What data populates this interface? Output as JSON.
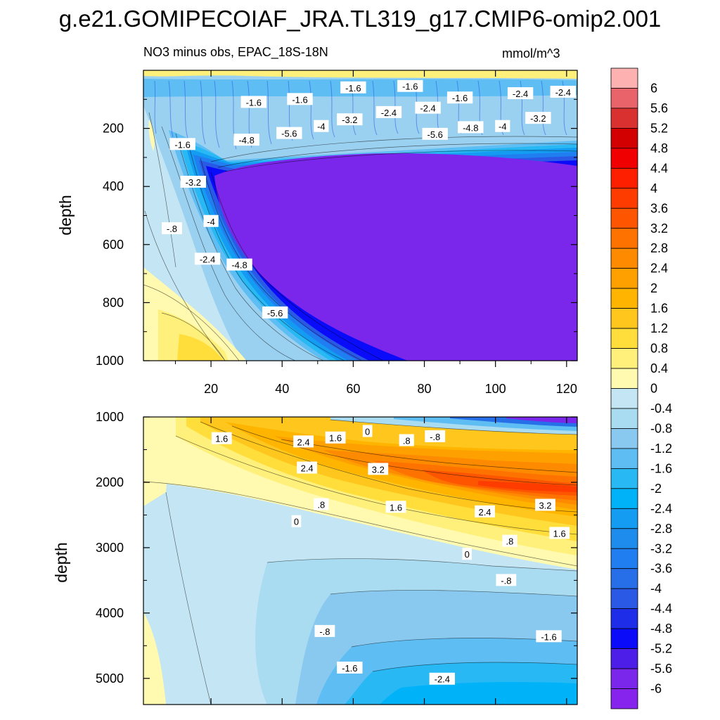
{
  "title": "g.e21.GOMIPECOIAF_JRA.TL319_g17.CMIP6-omip2.001",
  "subtitle": "NO3 minus obs, EPAC_18S-18N",
  "units": "mmol/m^3",
  "chart_data": [
    {
      "type": "contour",
      "name": "upper panel (0-1000 m)",
      "ylabel": "depth",
      "xlabel": "",
      "xlim": [
        1,
        123
      ],
      "ylim": [
        1000,
        0
      ],
      "xticks": [
        20,
        40,
        60,
        80,
        100,
        120
      ],
      "xtick_labels": [
        "20",
        "40",
        "60",
        "80",
        "100",
        "120"
      ],
      "yticks": [
        200,
        400,
        600,
        800,
        1000
      ],
      "ytick_labels": [
        "200",
        "400",
        "600",
        "800",
        "1000"
      ],
      "contour_labels": [
        {
          "text": "-1.6",
          "x": 60,
          "y": 60
        },
        {
          "text": "-1.6",
          "x": 76,
          "y": 55
        },
        {
          "text": "-2.4",
          "x": 107,
          "y": 80
        },
        {
          "text": "-2.4",
          "x": 119,
          "y": 75
        },
        {
          "text": "-1.6",
          "x": 90,
          "y": 95
        },
        {
          "text": "-1.6",
          "x": 32,
          "y": 110
        },
        {
          "text": "-1.6",
          "x": 45,
          "y": 100
        },
        {
          "text": "-2.4",
          "x": 81,
          "y": 130
        },
        {
          "text": "-2.4",
          "x": 70,
          "y": 145
        },
        {
          "text": "-3.2",
          "x": 59,
          "y": 170
        },
        {
          "text": "-3.2",
          "x": 112,
          "y": 165
        },
        {
          "text": "-4",
          "x": 51,
          "y": 193
        },
        {
          "text": "-4.8",
          "x": 93,
          "y": 197
        },
        {
          "text": "-4",
          "x": 102,
          "y": 193
        },
        {
          "text": "-5.6",
          "x": 42,
          "y": 217
        },
        {
          "text": "-5.6",
          "x": 83,
          "y": 220
        },
        {
          "text": "-4.8",
          "x": 30,
          "y": 240
        },
        {
          "text": "-1.6",
          "x": 12,
          "y": 255
        },
        {
          "text": "-3.2",
          "x": 15,
          "y": 385
        },
        {
          "text": "-4",
          "x": 20,
          "y": 520
        },
        {
          "text": "-.8",
          "x": 9,
          "y": 545
        },
        {
          "text": "-2.4",
          "x": 19,
          "y": 650
        },
        {
          "text": "-4.8",
          "x": 28,
          "y": 670
        },
        {
          "text": "-5.6",
          "x": 38,
          "y": 835
        }
      ]
    },
    {
      "type": "contour",
      "name": "lower panel (1000-5400 m)",
      "ylabel": "depth",
      "xlabel": "",
      "xlim": [
        1,
        123
      ],
      "ylim": [
        5400,
        1000
      ],
      "yticks": [
        1000,
        2000,
        3000,
        4000,
        5000
      ],
      "ytick_labels": [
        "1000",
        "2000",
        "3000",
        "4000",
        "5000"
      ],
      "contour_labels": [
        {
          "text": "1.6",
          "x": 23,
          "y": 1330
        },
        {
          "text": "2.4",
          "x": 46,
          "y": 1380
        },
        {
          "text": "1.6",
          "x": 55,
          "y": 1320
        },
        {
          "text": "0",
          "x": 64,
          "y": 1220
        },
        {
          "text": ".8",
          "x": 75,
          "y": 1360
        },
        {
          "text": "-.8",
          "x": 83,
          "y": 1300
        },
        {
          "text": "2.4",
          "x": 47,
          "y": 1780
        },
        {
          "text": "3.2",
          "x": 67,
          "y": 1800
        },
        {
          "text": ".8",
          "x": 51,
          "y": 2340
        },
        {
          "text": "1.6",
          "x": 72,
          "y": 2380
        },
        {
          "text": "2.4",
          "x": 97,
          "y": 2450
        },
        {
          "text": "3.2",
          "x": 114,
          "y": 2350
        },
        {
          "text": "0",
          "x": 44,
          "y": 2600
        },
        {
          "text": ".8",
          "x": 104,
          "y": 2900
        },
        {
          "text": "1.6",
          "x": 118,
          "y": 2780
        },
        {
          "text": "0",
          "x": 92,
          "y": 3100
        },
        {
          "text": "-.8",
          "x": 103,
          "y": 3500
        },
        {
          "text": "-.8",
          "x": 52,
          "y": 4280
        },
        {
          "text": "-1.6",
          "x": 115,
          "y": 4360
        },
        {
          "text": "-1.6",
          "x": 59,
          "y": 4840
        },
        {
          "text": "-2.4",
          "x": 85,
          "y": 5010
        }
      ]
    },
    {
      "type": "colorbar",
      "labels": [
        "6",
        "5.6",
        "5.2",
        "4.8",
        "4.4",
        "4",
        "3.6",
        "3.2",
        "2.8",
        "2.4",
        "2",
        "1.6",
        "1.2",
        "0.8",
        "0.4",
        "0",
        "-0.4",
        "-0.8",
        "-1.2",
        "-1.6",
        "-2",
        "-2.4",
        "-2.8",
        "-3.2",
        "-3.6",
        "-4",
        "-4.4",
        "-4.8",
        "-5.2",
        "-5.6",
        "-6"
      ],
      "colors": [
        "#fdb2b1",
        "#e9636a",
        "#d93030",
        "#d20000",
        "#f00000",
        "#fe1e00",
        "#fe3c00",
        "#fe5500",
        "#fe7300",
        "#fe8a00",
        "#fea000",
        "#ffb400",
        "#ffc71e",
        "#ffde3c",
        "#fff07b",
        "#fffaaf",
        "#c4e6f4",
        "#a9dbf1",
        "#8ac9ef",
        "#5ebdf3",
        "#28b9f5",
        "#00b3f9",
        "#139cf2",
        "#1e8cec",
        "#207ef0",
        "#276ee9",
        "#2a59e6",
        "#1d2de8",
        "#0a0bf8",
        "#4d1ee8",
        "#7b26eb",
        "#8623ed"
      ]
    }
  ],
  "palette": {
    "deep_negative": "#7b26eb",
    "upper_bg": "#9bd1f0",
    "lower_bg": "#c4e6f4"
  }
}
